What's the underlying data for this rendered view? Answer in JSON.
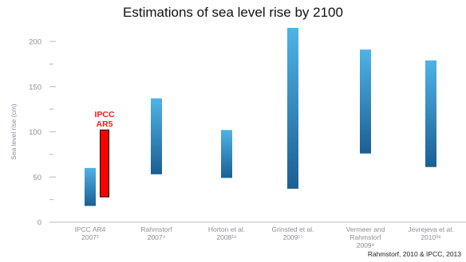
{
  "chart_data": {
    "type": "bar",
    "title": "Estimations of sea level rise by 2100",
    "ylabel": "Sea level rise (cm)",
    "xlabel": "",
    "ylim": [
      0,
      220
    ],
    "yticks": [
      0,
      50,
      100,
      150,
      200
    ],
    "grid": false,
    "categories": [
      {
        "lines": [
          "IPCC AR4",
          "2007¹"
        ]
      },
      {
        "lines": [
          "Rahmstorf",
          "2007⁴"
        ]
      },
      {
        "lines": [
          "Horton et al.",
          "2008¹⁶"
        ]
      },
      {
        "lines": [
          "Grinsted et al.",
          "2009¹⁷"
        ]
      },
      {
        "lines": [
          "Vermeer and",
          "Rahmstorf",
          "2009⁸"
        ]
      },
      {
        "lines": [
          "Jevrejeva et al.",
          "2010³⁸"
        ]
      }
    ],
    "series": [
      {
        "ranges": [
          [
            18,
            60
          ],
          [
            53,
            137
          ],
          [
            49,
            102
          ],
          [
            37,
            215
          ],
          [
            76,
            191
          ],
          [
            61,
            179
          ]
        ]
      }
    ],
    "annotation": {
      "category_index": 0,
      "range": [
        28,
        102
      ],
      "label_lines": [
        "IPCC",
        "AR5"
      ]
    },
    "colors": {
      "bar_light": "#4fb3e6",
      "bar_dark": "#1b5f94",
      "annotation": "#ff0000",
      "annotation_text": "#e8201c",
      "axis": "#b5b9bd"
    }
  },
  "source_note": "Rahmstorf, 2010 & IPCC, 2013"
}
